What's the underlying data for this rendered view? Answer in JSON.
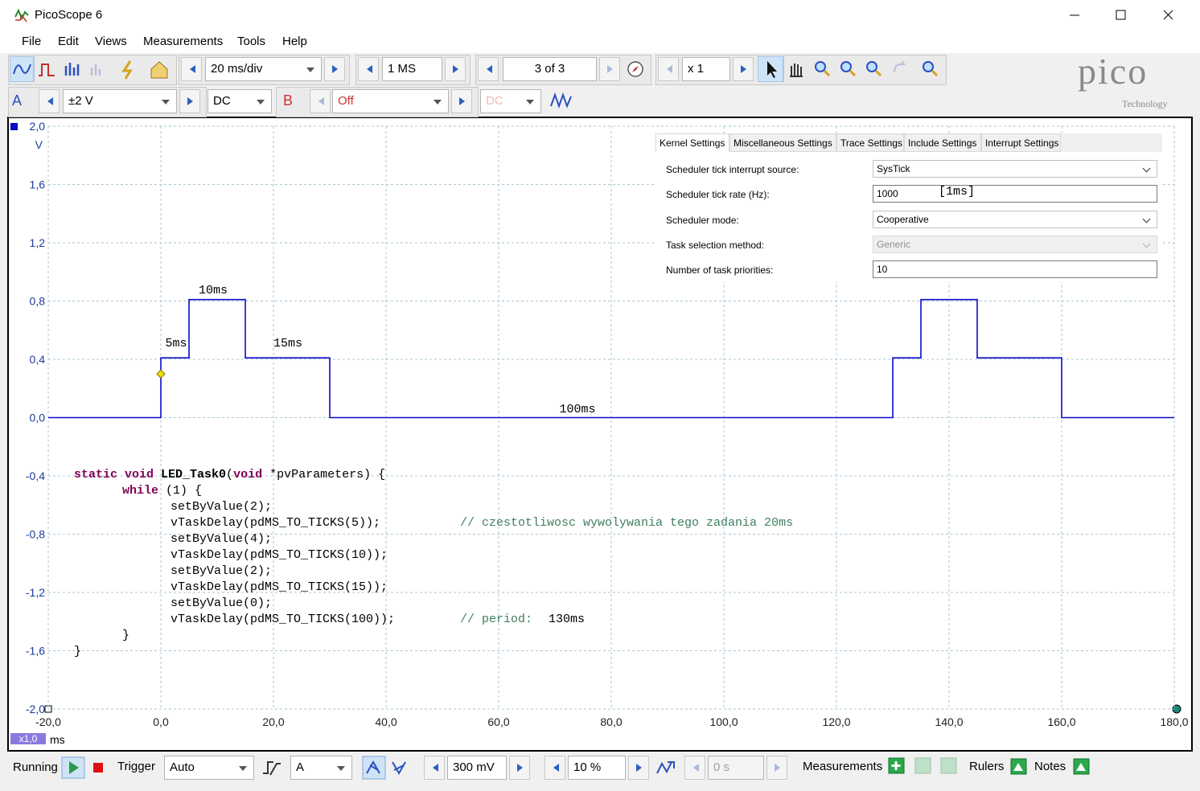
{
  "window": {
    "title": "PicoScope 6"
  },
  "menu": {
    "items": [
      "File",
      "Edit",
      "Views",
      "Measurements",
      "Tools",
      "Help"
    ]
  },
  "toolbar": {
    "timebase": "20 ms/div",
    "samples": "1 MS",
    "buffer": "3 of 3",
    "zoom": "x 1"
  },
  "logo": {
    "name": "pico",
    "subtitle": "Technology"
  },
  "channels": [
    {
      "name": "A",
      "range": "±2 V",
      "coupling": "DC"
    },
    {
      "name": "B",
      "range": "Off",
      "coupling": "DC"
    }
  ],
  "chart_data": {
    "type": "line",
    "y_unit": "V",
    "x_unit": "ms",
    "x_scale": "x1,0",
    "grid": true,
    "xlim": [
      -20,
      180
    ],
    "ylim": [
      -2,
      2
    ],
    "xticks": [
      {
        "value": -20,
        "label": "-20,0"
      },
      {
        "value": 0,
        "label": "0,0"
      },
      {
        "value": 20,
        "label": "20,0"
      },
      {
        "value": 40,
        "label": "40,0"
      },
      {
        "value": 60,
        "label": "60,0"
      },
      {
        "value": 80,
        "label": "80,0"
      },
      {
        "value": 100,
        "label": "100,0"
      },
      {
        "value": 120,
        "label": "120,0"
      },
      {
        "value": 140,
        "label": "140,0"
      },
      {
        "value": 160,
        "label": "160,0"
      },
      {
        "value": 180,
        "label": "180,0"
      }
    ],
    "yticks": [
      {
        "value": 2,
        "label": "2,0"
      },
      {
        "value": 1.6,
        "label": "1,6"
      },
      {
        "value": 1.2,
        "label": "1,2"
      },
      {
        "value": 0.8,
        "label": "0,8"
      },
      {
        "value": 0.4,
        "label": "0,4"
      },
      {
        "value": 0,
        "label": "0,0"
      },
      {
        "value": -0.4,
        "label": "-0,4"
      },
      {
        "value": -0.8,
        "label": "-0,8"
      },
      {
        "value": -1.2,
        "label": "-1,2"
      },
      {
        "value": -1.6,
        "label": "-1,6"
      },
      {
        "value": -2,
        "label": "-2,0"
      }
    ],
    "x": [
      -20,
      0,
      0,
      5,
      5,
      15,
      15,
      30,
      30,
      130,
      130,
      135,
      135,
      145,
      145,
      160,
      160,
      180
    ],
    "series": [
      {
        "color": "#0a0ac8",
        "values": [
          0,
          0,
          0.41,
          0.41,
          0.81,
          0.81,
          0.41,
          0.41,
          0,
          0,
          0.41,
          0.41,
          0.81,
          0.81,
          0.41,
          0.41,
          0,
          0
        ]
      }
    ],
    "trigger": {
      "x": 0,
      "y": 0.3
    },
    "annotations": [
      "10ms",
      "5ms",
      "15ms",
      "100ms"
    ]
  },
  "code": {
    "lines": [
      [
        {
          "text": "static void ",
          "style": "keyword"
        },
        {
          "text": "LED_Task0",
          "style": "bold"
        },
        {
          "text": "("
        },
        {
          "text": "void",
          "style": "keyword"
        },
        {
          "text": " *pvParameters) {"
        }
      ],
      [
        {
          "text": "while",
          "style": "keyword"
        },
        {
          "text": " (1) {"
        }
      ],
      [
        {
          "text": "setByValue(2);"
        }
      ],
      [
        {
          "text": "vTaskDelay(pdMS_TO_TICKS(5));"
        },
        {
          "text": "// czestotliwosc wywolywania tego zadania 20ms",
          "style": "comment"
        }
      ],
      [
        {
          "text": "setByValue(4);"
        }
      ],
      [
        {
          "text": "vTaskDelay(pdMS_TO_TICKS(10));"
        }
      ],
      [
        {
          "text": "setByValue(2);"
        }
      ],
      [
        {
          "text": "vTaskDelay(pdMS_TO_TICKS(15));"
        }
      ],
      [
        {
          "text": "setByValue(0);"
        }
      ],
      [
        {
          "text": "vTaskDelay(pdMS_TO_TICKS(100));"
        },
        {
          "text": "// period:",
          "style": "comment"
        },
        {
          "text": "130ms"
        }
      ],
      [
        {
          "text": "}"
        }
      ],
      [
        {
          "text": "}"
        }
      ]
    ]
  },
  "settings": {
    "tabs": [
      "Kernel Settings",
      "Miscellaneous Settings",
      "Trace Settings",
      "Include Settings",
      "Interrupt Settings"
    ],
    "active_tab": 0,
    "rows": [
      {
        "label": "Scheduler tick interrupt source:",
        "value": "SysTick",
        "kind": "dropdown"
      },
      {
        "label": "Scheduler tick rate (Hz):",
        "value": "1000",
        "kind": "input",
        "note": "[1ms]"
      },
      {
        "label": "Scheduler mode:",
        "value": "Cooperative",
        "kind": "dropdown"
      },
      {
        "label": "Task selection method:",
        "value": "Generic",
        "kind": "dropdown",
        "disabled": true
      },
      {
        "label": "Number of task priorities:",
        "value": "10",
        "kind": "input"
      }
    ]
  },
  "status_bar": {
    "running": "Running",
    "trigger": "Trigger",
    "trigger_mode": "Auto",
    "trigger_channel": "A",
    "threshold": "300 mV",
    "pre_trigger": "10 %",
    "delay": "0 s",
    "measurements": "Measurements",
    "rulers": "Rulers",
    "notes": "Notes"
  }
}
